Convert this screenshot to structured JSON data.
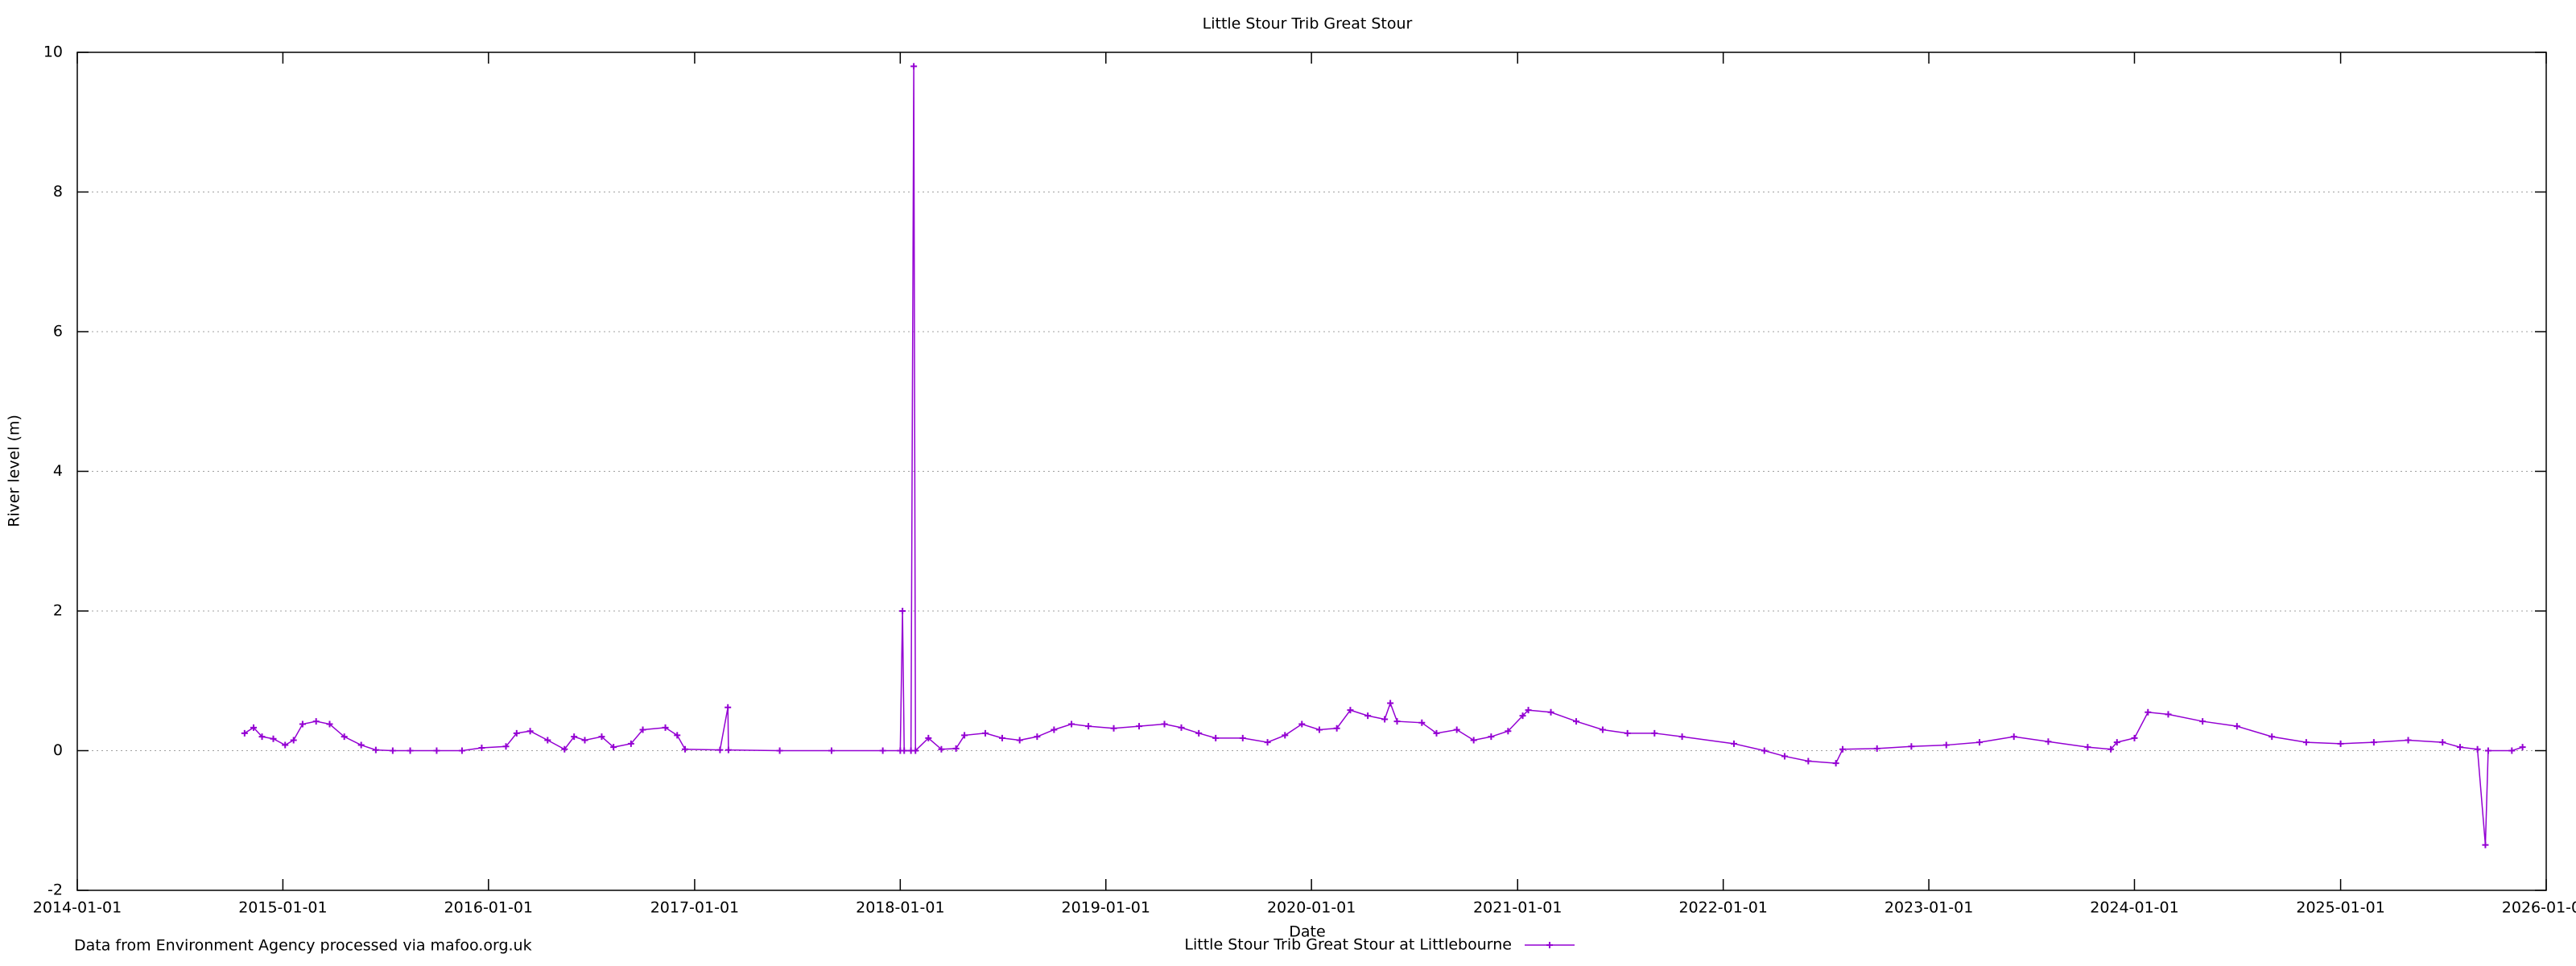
{
  "chart_data": {
    "type": "line",
    "title": "Little Stour Trib  Great Stour",
    "x_label": "Date",
    "y_label": "River level (m)",
    "source": "Data from Environment Agency processed via mafoo.org.uk",
    "legend": "bottom center",
    "grid": true,
    "xlim": [
      "2014-01-01",
      "2026-01-01"
    ],
    "xticks": [
      "2014-01-01",
      "2015-01-01",
      "2016-01-01",
      "2017-01-01",
      "2018-01-01",
      "2019-01-01",
      "2020-01-01",
      "2021-01-01",
      "2022-01-01",
      "2023-01-01",
      "2024-01-01",
      "2025-01-01",
      "2026-01-01"
    ],
    "ylim": [
      -2,
      10
    ],
    "yticks": [
      -2,
      0,
      2,
      4,
      6,
      8,
      10
    ],
    "x": [
      "2014-10-25",
      "2014-11-10",
      "2014-11-25",
      "2014-12-15",
      "2015-01-05",
      "2015-01-20",
      "2015-02-05",
      "2015-03-01",
      "2015-03-25",
      "2015-04-20",
      "2015-05-20",
      "2015-06-15",
      "2015-07-15",
      "2015-08-15",
      "2015-10-01",
      "2015-11-15",
      "2015-12-20",
      "2016-02-01",
      "2016-02-20",
      "2016-03-15",
      "2016-04-15",
      "2016-05-15",
      "2016-06-01",
      "2016-06-20",
      "2016-07-20",
      "2016-08-10",
      "2016-09-10",
      "2016-10-01",
      "2016-11-10",
      "2016-12-01",
      "2016-12-15",
      "2017-02-15",
      "2017-03-01",
      "2017-03-02",
      "2017-06-01",
      "2017-09-01",
      "2017-12-01",
      "2018-01-01",
      "2018-01-05",
      "2018-01-08",
      "2018-01-20",
      "2018-01-25",
      "2018-01-28",
      "2018-02-20",
      "2018-03-15",
      "2018-04-10",
      "2018-04-25",
      "2018-06-01",
      "2018-07-01",
      "2018-08-01",
      "2018-09-01",
      "2018-10-01",
      "2018-11-01",
      "2018-12-01",
      "2019-01-15",
      "2019-03-01",
      "2019-04-15",
      "2019-05-15",
      "2019-06-15",
      "2019-07-15",
      "2019-09-01",
      "2019-10-15",
      "2019-11-15",
      "2019-12-15",
      "2020-01-15",
      "2020-02-15",
      "2020-03-10",
      "2020-04-10",
      "2020-05-10",
      "2020-05-20",
      "2020-06-01",
      "2020-07-15",
      "2020-08-10",
      "2020-09-15",
      "2020-10-15",
      "2020-11-15",
      "2020-12-15",
      "2021-01-10",
      "2021-01-20",
      "2021-03-01",
      "2021-04-15",
      "2021-06-01",
      "2021-07-15",
      "2021-09-01",
      "2021-10-20",
      "2022-01-20",
      "2022-03-15",
      "2022-04-20",
      "2022-06-01",
      "2022-07-20",
      "2022-08-01",
      "2022-10-01",
      "2022-12-01",
      "2023-02-01",
      "2023-04-01",
      "2023-06-01",
      "2023-08-01",
      "2023-10-10",
      "2023-11-20",
      "2023-12-01",
      "2024-01-01",
      "2024-01-25",
      "2024-03-01",
      "2024-05-01",
      "2024-07-01",
      "2024-09-01",
      "2024-11-01",
      "2025-01-01",
      "2025-03-01",
      "2025-05-01",
      "2025-07-01",
      "2025-08-01",
      "2025-09-01",
      "2025-09-15",
      "2025-09-20",
      "2025-11-01",
      "2025-11-20"
    ],
    "series": [
      {
        "name": "Little Stour Trib  Great Stour at Littlebourne",
        "color": "#9400d3",
        "values": [
          0.25,
          0.33,
          0.2,
          0.17,
          0.08,
          0.15,
          0.38,
          0.42,
          0.38,
          0.2,
          0.08,
          0.01,
          0.0,
          0.0,
          0.0,
          0.0,
          0.04,
          0.06,
          0.25,
          0.28,
          0.15,
          0.02,
          0.2,
          0.15,
          0.2,
          0.05,
          0.1,
          0.3,
          0.33,
          0.22,
          0.02,
          0.01,
          0.62,
          0.01,
          0.0,
          0.0,
          0.0,
          0.0,
          2.0,
          0.0,
          0.0,
          9.8,
          0.0,
          0.18,
          0.02,
          0.03,
          0.22,
          0.25,
          0.18,
          0.15,
          0.2,
          0.3,
          0.38,
          0.35,
          0.32,
          0.35,
          0.38,
          0.33,
          0.25,
          0.18,
          0.18,
          0.12,
          0.22,
          0.38,
          0.3,
          0.32,
          0.58,
          0.5,
          0.45,
          0.68,
          0.42,
          0.4,
          0.25,
          0.3,
          0.15,
          0.2,
          0.28,
          0.5,
          0.58,
          0.55,
          0.42,
          0.3,
          0.25,
          0.25,
          0.2,
          0.1,
          0.0,
          -0.08,
          -0.15,
          -0.18,
          0.02,
          0.03,
          0.06,
          0.08,
          0.12,
          0.2,
          0.13,
          0.05,
          0.02,
          0.12,
          0.18,
          0.55,
          0.52,
          0.42,
          0.35,
          0.2,
          0.12,
          0.1,
          0.12,
          0.15,
          0.12,
          0.05,
          0.02,
          -1.35,
          0.0,
          0.0,
          0.05
        ]
      }
    ]
  }
}
